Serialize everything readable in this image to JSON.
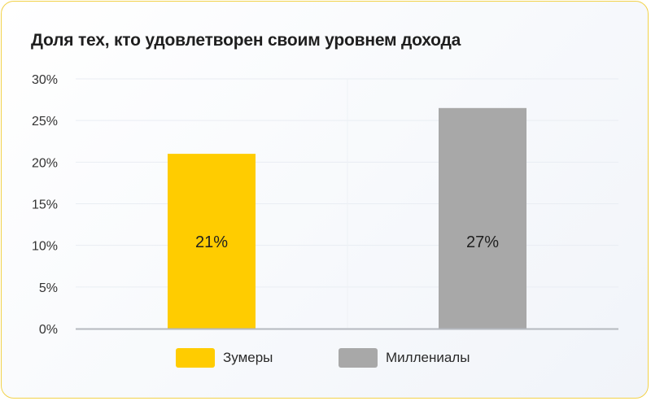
{
  "chart_data": {
    "type": "bar",
    "title": "Доля тех, кто удовлетворен своим уровнем дохода",
    "categories": [
      "Зумеры",
      "Миллениалы"
    ],
    "values": [
      21,
      26.5
    ],
    "data_labels": [
      "21%",
      "27%"
    ],
    "colors": [
      "#ffcc00",
      "#a8a8a8"
    ],
    "ylim": [
      0,
      30
    ],
    "yticks": [
      0,
      5,
      10,
      15,
      20,
      25,
      30
    ],
    "ytick_labels": [
      "0%",
      "5%",
      "10%",
      "15%",
      "20%",
      "25%",
      "30%"
    ],
    "grid": true,
    "legend_position": "bottom"
  }
}
